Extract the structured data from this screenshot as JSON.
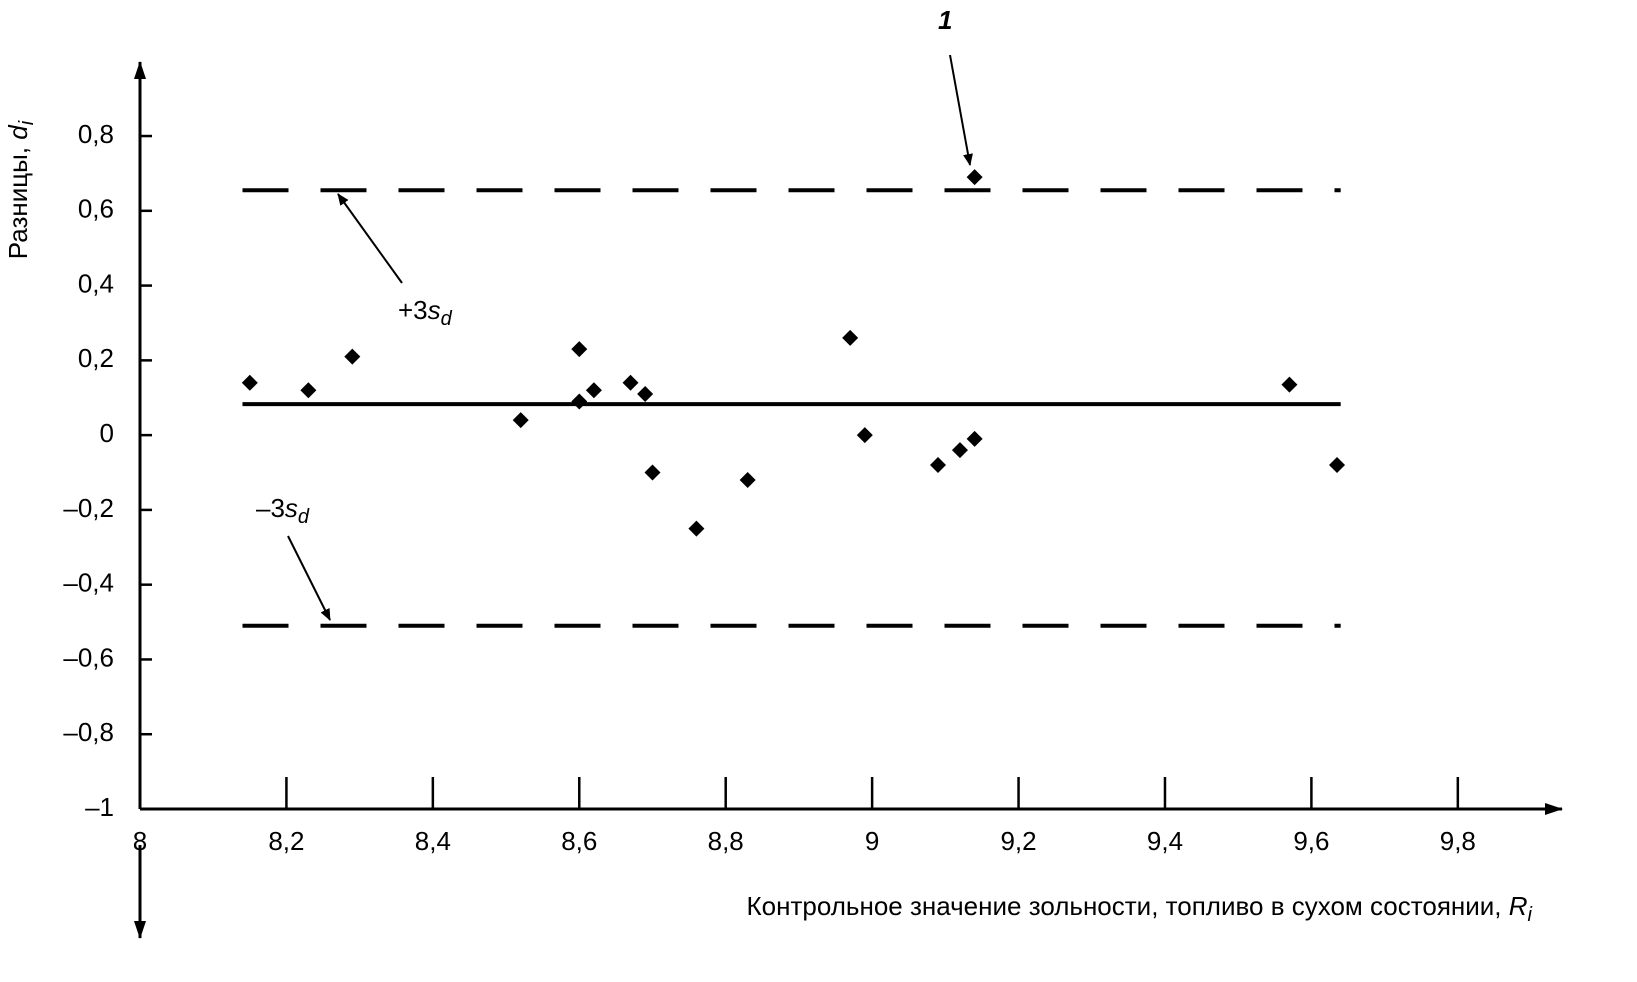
{
  "chart_data": {
    "type": "scatter",
    "x_label": {
      "text": "Контрольное значение зольности, топливо в сухом состоянии, ",
      "var": "R",
      "sub": "i"
    },
    "y_label": {
      "text": "Разницы, ",
      "var": "d",
      "sub": "i"
    },
    "xlim": [
      8,
      9.93
    ],
    "ylim": [
      -1,
      0.99
    ],
    "xticks": [
      8,
      {
        "value": 8.2,
        "label": "8,2"
      },
      {
        "value": 8.4,
        "label": "8,4"
      },
      {
        "value": 8.6,
        "label": "8,6"
      },
      {
        "value": 8.8,
        "label": "8,8"
      },
      9,
      {
        "value": 9.2,
        "label": "9,2"
      },
      {
        "value": 9.4,
        "label": "9,4"
      },
      {
        "value": 9.6,
        "label": "9,6"
      },
      {
        "value": 9.8,
        "label": "9,8"
      }
    ],
    "yticks": [
      {
        "value": -1,
        "label": "–1"
      },
      {
        "value": -0.8,
        "label": "–0,8"
      },
      {
        "value": -0.6,
        "label": "–0,6"
      },
      {
        "value": -0.4,
        "label": "–0,4"
      },
      {
        "value": -0.2,
        "label": "–0,2"
      },
      0,
      {
        "value": 0.2,
        "label": "0,2"
      },
      {
        "value": 0.4,
        "label": "0,4"
      },
      {
        "value": 0.6,
        "label": "0,6"
      },
      {
        "value": 0.8,
        "label": "0,8"
      }
    ],
    "color": "#000000",
    "x": [
      8.15,
      8.23,
      8.29,
      8.52,
      8.6,
      8.6,
      8.62,
      8.67,
      8.69,
      8.7,
      8.76,
      8.83,
      8.97,
      8.99,
      9.09,
      9.12,
      9.14,
      9.14,
      9.57,
      9.635
    ],
    "values": [
      0.14,
      0.12,
      0.21,
      0.04,
      0.23,
      0.09,
      0.12,
      0.14,
      0.11,
      -0.1,
      -0.25,
      -0.12,
      0.26,
      0.0,
      -0.08,
      -0.04,
      -0.01,
      0.69,
      0.135,
      -0.08
    ],
    "reference_lines": [
      {
        "y": 0.655,
        "x": [
          8.14,
          9.64
        ],
        "style": "dashed"
      },
      {
        "y": 0.083,
        "x": [
          8.14,
          9.64
        ],
        "style": "solid"
      },
      {
        "y": -0.51,
        "x": [
          8.14,
          9.64
        ],
        "style": "dashed"
      }
    ],
    "annotations": [
      {
        "text": "+3",
        "var": "s",
        "sub": "d"
      },
      {
        "text": "–3",
        "var": "s",
        "sub": "d"
      },
      {
        "text": "1"
      }
    ]
  }
}
